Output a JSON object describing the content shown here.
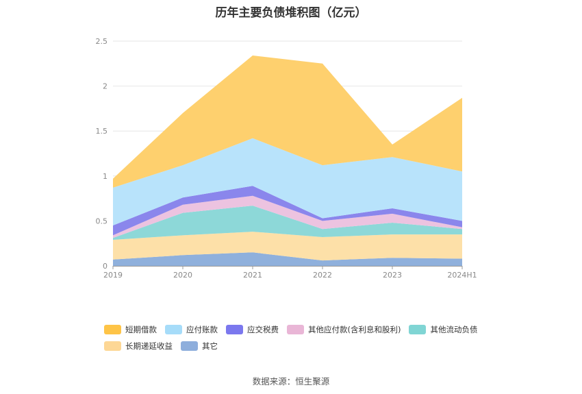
{
  "chart_data": {
    "type": "area",
    "title": "历年主要负债堆积图（亿元）",
    "stacked": true,
    "categories": [
      "2019",
      "2020",
      "2021",
      "2022",
      "2023",
      "2024H1"
    ],
    "ylim": [
      0,
      2.5
    ],
    "yticks": [
      "0",
      "0.5",
      "1",
      "1.5",
      "2",
      "2.5"
    ],
    "grid": true,
    "legend_position": "bottom",
    "series": [
      {
        "name": "其它",
        "color": "#8fb0dc",
        "values": [
          0.07,
          0.12,
          0.15,
          0.06,
          0.09,
          0.08
        ]
      },
      {
        "name": "长期递延收益",
        "color": "#fde0a8",
        "values": [
          0.22,
          0.22,
          0.23,
          0.26,
          0.26,
          0.27
        ]
      },
      {
        "name": "其他流动负债",
        "color": "#8dd8d8",
        "values": [
          0.02,
          0.25,
          0.29,
          0.09,
          0.13,
          0.06
        ]
      },
      {
        "name": "其他应付款(含利息和股利)",
        "color": "#ecc3e0",
        "values": [
          0.03,
          0.09,
          0.11,
          0.09,
          0.1,
          0.02
        ]
      },
      {
        "name": "应交税费",
        "color": "#8a86ec",
        "values": [
          0.11,
          0.08,
          0.11,
          0.03,
          0.06,
          0.07
        ]
      },
      {
        "name": "应付账款",
        "color": "#b8e3fb",
        "values": [
          0.42,
          0.36,
          0.53,
          0.59,
          0.57,
          0.55
        ]
      },
      {
        "name": "短期借款",
        "color": "#fed06e",
        "values": [
          0.1,
          0.58,
          0.92,
          1.13,
          0.14,
          0.82
        ]
      }
    ]
  },
  "legend_order": [
    {
      "name": "短期借款",
      "color": "#fec447"
    },
    {
      "name": "应付账款",
      "color": "#a6dcf9"
    },
    {
      "name": "应交税费",
      "color": "#7b78ee"
    },
    {
      "name": "其他应付款(含利息和股利)",
      "color": "#e9b6d6"
    },
    {
      "name": "其他流动负债",
      "color": "#80d5d4"
    },
    {
      "name": "长期递延收益",
      "color": "#fdd795"
    },
    {
      "name": "其它",
      "color": "#8eaedc"
    }
  ],
  "source": "数据来源：恒生聚源"
}
